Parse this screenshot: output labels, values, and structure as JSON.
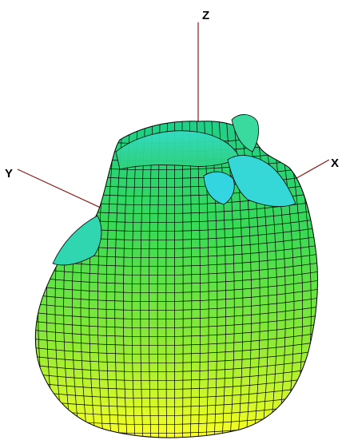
{
  "axes": {
    "x_label": "X",
    "y_label": "Y",
    "z_label": "Z",
    "axis_color": "#8b1a1a"
  },
  "surface": {
    "shape": "3d-mesh-surface",
    "colormap": [
      "#22cc88",
      "#33dd55",
      "#66ee33",
      "#aaf033",
      "#ffff22"
    ],
    "highlight_color": "#33d6e0",
    "mesh_line_color": "#000000"
  }
}
